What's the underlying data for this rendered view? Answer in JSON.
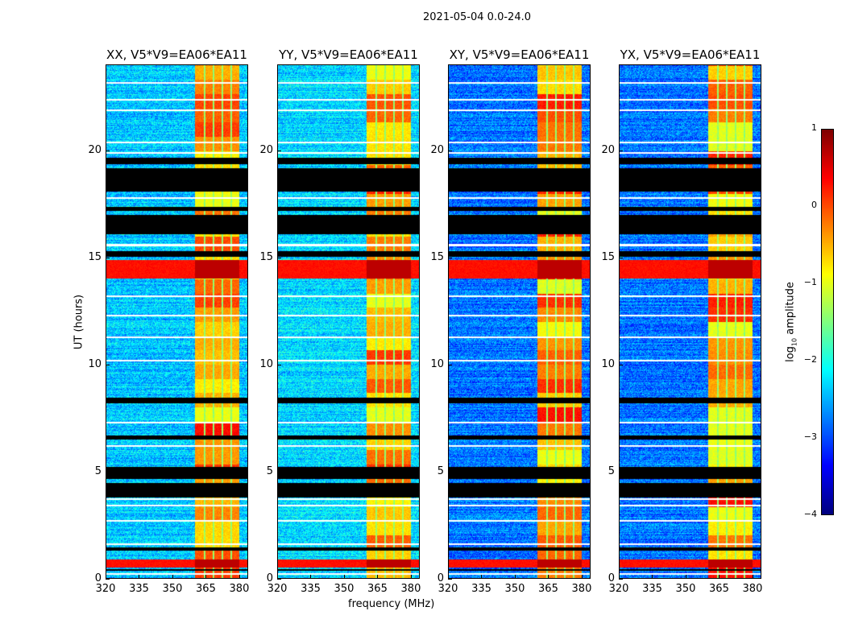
{
  "chart_data": {
    "type": "heatmap",
    "title": "2021-05-04 0.0-24.0",
    "xlabel": "frequency (MHz)",
    "ylabel": "UT (hours)",
    "xlim": [
      320,
      384
    ],
    "ylim": [
      0,
      24
    ],
    "xticks": [
      "320",
      "335",
      "350",
      "365",
      "380"
    ],
    "yticks": [
      "0",
      "5",
      "10",
      "15",
      "20"
    ],
    "panels": [
      {
        "title": "XX, V5*V9=EA06*EA11",
        "base_level": -2.4
      },
      {
        "title": "YY, V5*V9=EA06*EA11",
        "base_level": -2.3
      },
      {
        "title": "XY, V5*V9=EA06*EA11",
        "base_level": -2.8
      },
      {
        "title": "YX, V5*V9=EA06*EA11",
        "base_level": -2.8
      }
    ],
    "rfi_band_mhz": [
      [
        360,
        364
      ],
      [
        364.8,
        368
      ],
      [
        368.8,
        372
      ],
      [
        372.8,
        376
      ],
      [
        376.8,
        380
      ]
    ],
    "rfi_level": -0.5,
    "flagged_hours": [
      [
        19.4,
        19.7
      ],
      [
        18.1,
        19.2
      ],
      [
        17.2,
        17.4
      ],
      [
        16.1,
        17.0
      ],
      [
        15.05,
        15.3
      ],
      [
        8.2,
        8.45
      ],
      [
        6.5,
        6.7
      ],
      [
        4.65,
        5.2
      ],
      [
        3.8,
        4.45
      ],
      [
        1.3,
        1.45
      ],
      [
        0.35,
        0.45
      ]
    ],
    "gap_hours": [
      23.2,
      22.4,
      21.9,
      20.4,
      19.9,
      17.8,
      15.6,
      13.2,
      12.3,
      11.3,
      10.2,
      7.3,
      6.2,
      3.7,
      3.4,
      2.7,
      1.6,
      0.2
    ],
    "strong_hours": [
      [
        14.05,
        14.9
      ],
      [
        0.5,
        0.9
      ]
    ],
    "colorbar": {
      "label_prefix": "log",
      "label_sub": "10",
      "label_suffix": " amplitude",
      "range": [
        -4,
        1
      ],
      "ticks": [
        "1",
        "0",
        "−1",
        "−2",
        "−3",
        "−4"
      ]
    }
  }
}
